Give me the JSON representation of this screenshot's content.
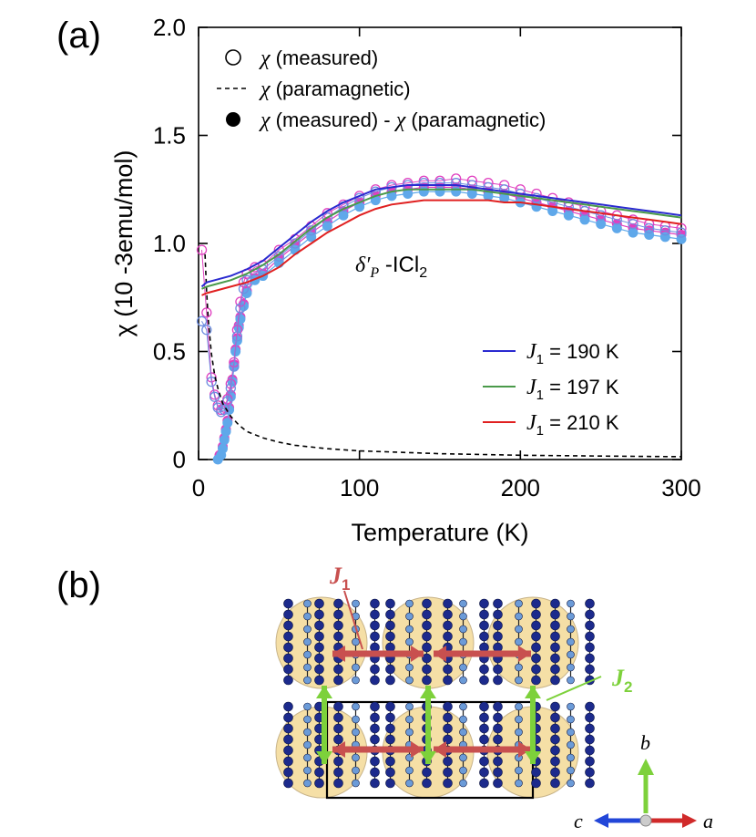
{
  "panel_a": {
    "label": "(a)",
    "annotation": {
      "prefix": "δ′",
      "sub": "P",
      "middle": " -ICl",
      "sub2": "2"
    },
    "legend_top": [
      {
        "marker": "open-circle",
        "symbol": "χ",
        "text": " (measured)"
      },
      {
        "marker": "dashed-line",
        "symbol": "χ",
        "text": " (paramagnetic)"
      },
      {
        "marker": "filled-circle",
        "symbol": "χ",
        "text": " (measured) - ",
        "symbol2": "χ",
        "text2": " (paramagnetic)"
      }
    ],
    "legend_fits": [
      {
        "color": "#2a2ad0",
        "sym": "J",
        "sub": "1",
        "text": " = 190 K"
      },
      {
        "color": "#4a9a4a",
        "sym": "J",
        "sub": "1",
        "text": " = 197 K"
      },
      {
        "color": "#e02020",
        "sym": "J",
        "sub": "1",
        "text": " = 210 K"
      }
    ]
  },
  "panel_b": {
    "label": "(b)",
    "j1": {
      "sym": "J",
      "sub": "1",
      "color": "#c8504f"
    },
    "j2": {
      "sym": "J",
      "sub": "2",
      "color": "#7dd13b"
    },
    "axes": {
      "b": "b",
      "c": "c",
      "a": "a"
    },
    "colors": {
      "circle_fill": "#f5dfa6",
      "dark_atom": "#1c2a8c",
      "light_atom": "#6b9bd8",
      "arrow_j1": "#c8504f",
      "arrow_j2": "#7dd13b"
    }
  },
  "chart_data": {
    "type": "line",
    "title": "",
    "xlabel": "Temperature (K)",
    "ylabel": "χ (10 -3emu/mol)",
    "xlim": [
      0,
      300
    ],
    "ylim": [
      0,
      2.0
    ],
    "xticks": [
      "0",
      "100",
      "200",
      "300"
    ],
    "yticks": [
      "0",
      "0.5",
      "1.0",
      "1.5",
      "2.0"
    ],
    "series": [
      {
        "name": "χ (measured)",
        "style": "open-circle",
        "color": "#e040c0",
        "x": [
          2,
          5,
          8,
          10,
          12,
          14,
          16,
          18,
          20,
          22,
          24,
          26,
          28,
          30,
          35,
          40,
          50,
          60,
          70,
          80,
          90,
          100,
          110,
          120,
          130,
          140,
          150,
          160,
          170,
          180,
          190,
          200,
          210,
          220,
          230,
          240,
          250,
          260,
          270,
          280,
          290,
          300
        ],
        "y": [
          0.97,
          0.68,
          0.38,
          0.3,
          0.25,
          0.23,
          0.24,
          0.28,
          0.35,
          0.45,
          0.6,
          0.73,
          0.82,
          0.86,
          0.89,
          0.9,
          0.97,
          1.02,
          1.08,
          1.14,
          1.18,
          1.22,
          1.25,
          1.27,
          1.28,
          1.29,
          1.29,
          1.3,
          1.29,
          1.28,
          1.27,
          1.25,
          1.23,
          1.21,
          1.19,
          1.17,
          1.15,
          1.13,
          1.11,
          1.09,
          1.08,
          1.07
        ]
      },
      {
        "name": "χ (measured)",
        "style": "open-circle",
        "color": "#6e8ee0",
        "x": [
          2,
          5,
          8,
          10,
          12,
          14,
          16,
          18,
          20,
          22,
          24,
          26,
          28,
          30,
          35,
          40,
          50,
          60,
          70,
          80,
          90,
          100,
          110,
          120,
          130,
          140,
          150,
          160,
          170,
          180,
          190,
          200,
          210,
          220,
          230,
          240,
          250,
          260,
          270,
          280,
          290,
          300
        ],
        "y": [
          0.64,
          0.6,
          0.36,
          0.29,
          0.24,
          0.22,
          0.23,
          0.27,
          0.33,
          0.43,
          0.57,
          0.7,
          0.79,
          0.83,
          0.86,
          0.88,
          0.94,
          1.0,
          1.06,
          1.12,
          1.17,
          1.21,
          1.24,
          1.26,
          1.27,
          1.28,
          1.28,
          1.28,
          1.27,
          1.26,
          1.25,
          1.23,
          1.21,
          1.19,
          1.17,
          1.15,
          1.13,
          1.11,
          1.09,
          1.07,
          1.06,
          1.05
        ]
      },
      {
        "name": "χ (paramagnetic)",
        "style": "dashed",
        "color": "#000000",
        "x": [
          4,
          5,
          6,
          8,
          10,
          12,
          15,
          20,
          25,
          30,
          40,
          50,
          60,
          80,
          100,
          150,
          200,
          250,
          300
        ],
        "y": [
          0.95,
          0.78,
          0.65,
          0.49,
          0.39,
          0.33,
          0.26,
          0.2,
          0.16,
          0.13,
          0.1,
          0.08,
          0.066,
          0.05,
          0.04,
          0.027,
          0.02,
          0.016,
          0.013
        ]
      },
      {
        "name": "χ (measured) - χ (paramagnetic)",
        "style": "filled-circle",
        "color": "#e040c0",
        "x": [
          13,
          15,
          16,
          17,
          18,
          19,
          20,
          21,
          22,
          23,
          24,
          25,
          26,
          28,
          30,
          35,
          40,
          50,
          60,
          70,
          80,
          90,
          100,
          110,
          120,
          130,
          140,
          150,
          160,
          170,
          180,
          190,
          200,
          210,
          220,
          230,
          240,
          250,
          260,
          270,
          280,
          290,
          300
        ],
        "y": [
          0.02,
          0.06,
          0.1,
          0.14,
          0.18,
          0.24,
          0.3,
          0.37,
          0.44,
          0.51,
          0.56,
          0.62,
          0.66,
          0.72,
          0.78,
          0.84,
          0.86,
          0.93,
          0.99,
          1.05,
          1.1,
          1.15,
          1.19,
          1.22,
          1.24,
          1.25,
          1.26,
          1.26,
          1.26,
          1.25,
          1.24,
          1.23,
          1.21,
          1.19,
          1.17,
          1.15,
          1.13,
          1.11,
          1.09,
          1.07,
          1.06,
          1.05,
          1.04
        ]
      },
      {
        "name": "χ (measured) - χ (paramagnetic)",
        "style": "filled-circle",
        "color": "#5fa8ea",
        "x": [
          12,
          14,
          15,
          16,
          17,
          18,
          19,
          20,
          21,
          22,
          23,
          24,
          25,
          26,
          28,
          30,
          35,
          40,
          50,
          60,
          70,
          80,
          90,
          100,
          110,
          120,
          130,
          140,
          150,
          160,
          170,
          180,
          190,
          200,
          210,
          220,
          230,
          240,
          250,
          260,
          270,
          280,
          290,
          300
        ],
        "y": [
          0.0,
          0.02,
          0.05,
          0.09,
          0.13,
          0.17,
          0.23,
          0.29,
          0.36,
          0.43,
          0.5,
          0.55,
          0.61,
          0.65,
          0.71,
          0.77,
          0.83,
          0.85,
          0.91,
          0.97,
          1.03,
          1.08,
          1.13,
          1.17,
          1.2,
          1.22,
          1.23,
          1.24,
          1.24,
          1.24,
          1.23,
          1.22,
          1.21,
          1.19,
          1.17,
          1.15,
          1.13,
          1.11,
          1.09,
          1.07,
          1.05,
          1.04,
          1.03,
          1.02
        ]
      },
      {
        "name": "J1 = 190 K",
        "style": "line",
        "color": "#2a2ad0",
        "x": [
          2,
          5,
          10,
          20,
          30,
          40,
          50,
          60,
          70,
          80,
          90,
          100,
          110,
          120,
          130,
          140,
          150,
          160,
          170,
          180,
          190,
          200,
          210,
          220,
          230,
          240,
          250,
          260,
          270,
          280,
          290,
          300
        ],
        "y": [
          0.8,
          0.82,
          0.83,
          0.85,
          0.88,
          0.92,
          0.98,
          1.04,
          1.1,
          1.15,
          1.19,
          1.22,
          1.25,
          1.26,
          1.27,
          1.27,
          1.27,
          1.27,
          1.26,
          1.25,
          1.24,
          1.23,
          1.22,
          1.21,
          1.2,
          1.19,
          1.18,
          1.17,
          1.16,
          1.15,
          1.14,
          1.13
        ]
      },
      {
        "name": "J1 = 197 K",
        "style": "line",
        "color": "#4a9a4a",
        "x": [
          2,
          5,
          10,
          20,
          30,
          40,
          50,
          60,
          70,
          80,
          90,
          100,
          110,
          120,
          130,
          140,
          150,
          160,
          170,
          180,
          190,
          200,
          210,
          220,
          230,
          240,
          250,
          260,
          270,
          280,
          290,
          300
        ],
        "y": [
          0.79,
          0.8,
          0.81,
          0.83,
          0.86,
          0.9,
          0.95,
          1.01,
          1.07,
          1.12,
          1.16,
          1.19,
          1.22,
          1.24,
          1.25,
          1.25,
          1.25,
          1.25,
          1.25,
          1.24,
          1.23,
          1.22,
          1.21,
          1.2,
          1.19,
          1.18,
          1.17,
          1.16,
          1.15,
          1.14,
          1.13,
          1.12
        ]
      },
      {
        "name": "J1 = 210 K",
        "style": "line",
        "color": "#e02020",
        "x": [
          2,
          5,
          10,
          20,
          30,
          40,
          50,
          60,
          70,
          80,
          90,
          100,
          110,
          120,
          130,
          140,
          150,
          160,
          170,
          180,
          190,
          200,
          210,
          220,
          230,
          240,
          250,
          260,
          270,
          280,
          290,
          300
        ],
        "y": [
          0.76,
          0.77,
          0.78,
          0.8,
          0.82,
          0.85,
          0.89,
          0.95,
          1.0,
          1.05,
          1.09,
          1.13,
          1.16,
          1.18,
          1.19,
          1.2,
          1.2,
          1.2,
          1.2,
          1.2,
          1.19,
          1.19,
          1.18,
          1.17,
          1.16,
          1.15,
          1.14,
          1.13,
          1.12,
          1.11,
          1.1,
          1.09
        ]
      }
    ]
  }
}
